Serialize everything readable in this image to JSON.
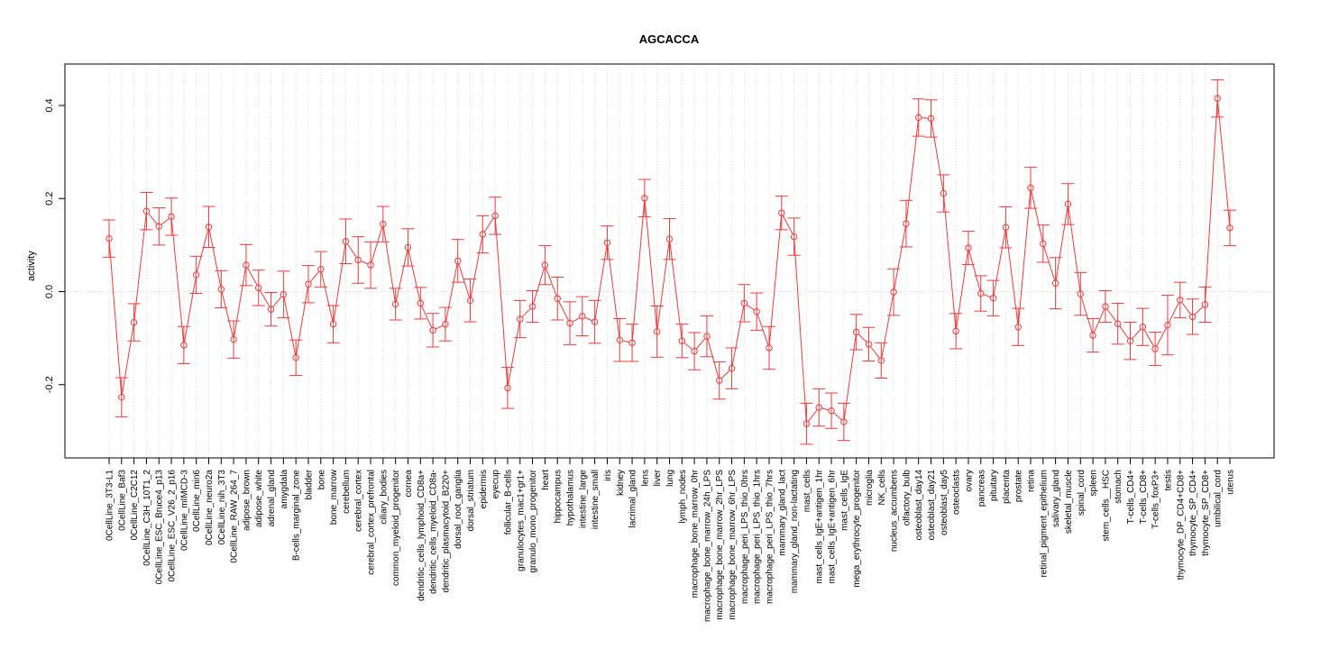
{
  "chart_data": {
    "type": "line",
    "title": "AGCACCA",
    "ylabel": "activity",
    "xlabel": "",
    "ylim": [
      -0.35,
      0.47
    ],
    "yticks": [
      -0.2,
      0.0,
      0.2,
      0.4
    ],
    "ytick_labels": [
      "-0.2",
      "0.0",
      "0.2",
      "0.4"
    ],
    "reference_line": 0,
    "grid": "vertical dotted",
    "line_color": "#ee3b3b",
    "grid_color": "#d3d3d3",
    "categories": [
      "0CellLine_3T3-L1",
      "0CellLine_Baf3",
      "0CellLine_C2C12",
      "0CellLine_C3H_10T1_2",
      "0CellLine_ESC_Bruce4_p13",
      "0CellLine_ESC_V26_2_p16",
      "0CellLine_mIMCD-3",
      "0CellLine_min6",
      "0CellLine_neuro2a",
      "0CellLine_nih_3T3",
      "0CellLine_RAW_264_7",
      "adipose_brown",
      "adipose_white",
      "adrenal_gland",
      "amygdala",
      "B-cells_marginal_zone",
      "bladder",
      "bone",
      "bone_marrow",
      "cerebellum",
      "cerebral_cortex",
      "cerebral_cortex_prefrontal",
      "ciliary_bodies",
      "common_myeloid_progenitor",
      "cornea",
      "dendritic_cells_lymphoid_CD8a+",
      "dendritic_cells_myeloid_CD8a-",
      "dendritic_plasmacytoid_B220+",
      "dorsal_root_ganglia",
      "dorsal_striatum",
      "epidermis",
      "eyecup",
      "follicular_B-cells",
      "granulocytes_mac1+gr1+",
      "granulo_mono_progenitor",
      "heart",
      "hippocampus",
      "hypothalamus",
      "intestine_large",
      "intestine_small",
      "iris",
      "kidney",
      "lacrimal_gland",
      "lens",
      "liver",
      "lung",
      "lymph_nodes",
      "macrophage_bone_marrow_0hr",
      "macrophage_bone_marrow_24h_LPS",
      "macrophage_bone_marrow_2hr_LPS",
      "macrophage_bone_marrow_6hr_LPS",
      "macrophage_peri_LPS_thio_0hrs",
      "macrophage_peri_LPS_thio_1hrs",
      "macrophage_peri_LPS_thio_7hrs",
      "mammary_gland_lact",
      "mammary_gland_non-lactating",
      "mast_cells",
      "mast_cells_IgE+antigen_1hr",
      "mast_cells_IgE+antigen_6hr",
      "mast_cells_IgE",
      "mega_erythrocyte_progenitor",
      "microglia",
      "NK_cells",
      "nucleus_accumbens",
      "olfactory_bulb",
      "osteoblast_day14",
      "osteoblast_day21",
      "osteoblast_day5",
      "osteoclasts",
      "ovary",
      "pancreas",
      "pituitary",
      "placenta",
      "prostate",
      "retina",
      "retinal_pigment_epithelium",
      "salivary_gland",
      "skeletal_muscle",
      "spinal_cord",
      "spleen",
      "stem_cells__HSC",
      "stomach",
      "T-cells_CD4+",
      "T-cells_CD8+",
      "T-cells_foxP3+",
      "testis",
      "thymocyte_DP_CD4+CD8+",
      "thymocyte_SP_CD4+",
      "thymocyte_SP_CD8+",
      "umbilical_cord",
      "uterus"
    ],
    "series": [
      {
        "values": [
          0.114,
          -0.227,
          -0.066,
          0.173,
          0.14,
          0.161,
          -0.115,
          0.036,
          0.139,
          0.005,
          -0.103,
          0.057,
          0.008,
          -0.038,
          -0.006,
          -0.142,
          0.016,
          0.048,
          -0.07,
          0.108,
          0.068,
          0.057,
          0.145,
          -0.027,
          0.095,
          -0.025,
          -0.083,
          -0.07,
          0.066,
          -0.019,
          0.123,
          0.163,
          -0.207,
          -0.059,
          -0.032,
          0.057,
          -0.015,
          -0.068,
          -0.053,
          -0.065,
          0.105,
          -0.104,
          -0.11,
          0.201,
          -0.086,
          0.113,
          -0.106,
          -0.128,
          -0.096,
          -0.191,
          -0.165,
          -0.025,
          -0.043,
          -0.121,
          0.169,
          0.118,
          -0.284,
          -0.249,
          -0.256,
          -0.28,
          -0.087,
          -0.113,
          -0.148,
          -0.001,
          0.146,
          0.374,
          0.372,
          0.211,
          -0.085,
          0.094,
          -0.004,
          -0.014,
          0.138,
          -0.076,
          0.223,
          0.103,
          0.018,
          0.188,
          -0.005,
          -0.094,
          -0.032,
          -0.069,
          -0.106,
          -0.076,
          -0.123,
          -0.072,
          -0.018,
          -0.054,
          -0.028,
          0.415,
          0.137
        ],
        "errors": [
          0.04,
          0.042,
          0.04,
          0.04,
          0.04,
          0.04,
          0.04,
          0.04,
          0.044,
          0.04,
          0.04,
          0.044,
          0.038,
          0.036,
          0.05,
          0.038,
          0.04,
          0.038,
          0.04,
          0.048,
          0.05,
          0.05,
          0.038,
          0.034,
          0.04,
          0.034,
          0.036,
          0.036,
          0.046,
          0.046,
          0.04,
          0.04,
          0.044,
          0.04,
          0.034,
          0.042,
          0.046,
          0.046,
          0.042,
          0.046,
          0.036,
          0.046,
          0.04,
          0.04,
          0.055,
          0.044,
          0.036,
          0.04,
          0.044,
          0.04,
          0.044,
          0.04,
          0.04,
          0.046,
          0.036,
          0.04,
          0.044,
          0.04,
          0.038,
          0.04,
          0.038,
          0.036,
          0.038,
          0.05,
          0.05,
          0.04,
          0.04,
          0.04,
          0.038,
          0.036,
          0.038,
          0.038,
          0.044,
          0.04,
          0.044,
          0.04,
          0.055,
          0.044,
          0.046,
          0.036,
          0.034,
          0.044,
          0.04,
          0.04,
          0.036,
          0.064,
          0.038,
          0.038,
          0.038,
          0.04,
          0.038
        ]
      }
    ]
  }
}
